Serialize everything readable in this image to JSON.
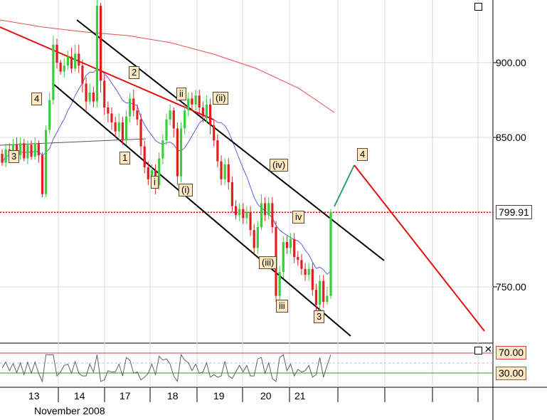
{
  "chart_data": {
    "type": "candlestick",
    "price_axis": {
      "ylim": [
        715,
        975
      ],
      "ticks": [
        "900.00",
        "850.00",
        "750.00"
      ]
    },
    "current_price": {
      "label": "799.91",
      "value": 799.91
    },
    "x_axis": {
      "tick_labels": [
        "13",
        "14",
        "17",
        "18",
        "19",
        "20",
        "21"
      ],
      "month_label": "November 2008"
    },
    "candles": [
      [
        839,
        833,
        842,
        831
      ],
      [
        833,
        842,
        846,
        830
      ],
      [
        842,
        838,
        846,
        835
      ],
      [
        838,
        845,
        849,
        834
      ],
      [
        845,
        838,
        850,
        836
      ],
      [
        838,
        846,
        850,
        835
      ],
      [
        846,
        836,
        849,
        834
      ],
      [
        836,
        845,
        848,
        832
      ],
      [
        845,
        837,
        848,
        835
      ],
      [
        837,
        846,
        850,
        835
      ],
      [
        846,
        838,
        848,
        833
      ],
      [
        838,
        812,
        840,
        810
      ],
      [
        812,
        855,
        858,
        810
      ],
      [
        855,
        875,
        880,
        852
      ],
      [
        875,
        912,
        918,
        872
      ],
      [
        912,
        900,
        916,
        896
      ],
      [
        900,
        894,
        902,
        892
      ],
      [
        894,
        898,
        903,
        890
      ],
      [
        898,
        904,
        908,
        895
      ],
      [
        904,
        896,
        910,
        893
      ],
      [
        896,
        906,
        912,
        894
      ],
      [
        906,
        898,
        912,
        893
      ],
      [
        898,
        886,
        902,
        880
      ],
      [
        886,
        874,
        890,
        868
      ],
      [
        874,
        880,
        886,
        872
      ],
      [
        880,
        874,
        884,
        870
      ],
      [
        874,
        938,
        942,
        870
      ],
      [
        938,
        888,
        940,
        880
      ],
      [
        888,
        870,
        892,
        865
      ],
      [
        870,
        866,
        874,
        860
      ],
      [
        866,
        860,
        870,
        855
      ],
      [
        860,
        854,
        864,
        850
      ],
      [
        854,
        860,
        866,
        850
      ],
      [
        860,
        848,
        864,
        845
      ],
      [
        848,
        864,
        868,
        845
      ],
      [
        864,
        876,
        880,
        860
      ],
      [
        876,
        868,
        882,
        864
      ],
      [
        868,
        862,
        872,
        858
      ],
      [
        862,
        844,
        866,
        838
      ],
      [
        844,
        830,
        848,
        826
      ],
      [
        830,
        822,
        834,
        818
      ],
      [
        822,
        828,
        832,
        818
      ],
      [
        828,
        818,
        832,
        812
      ],
      [
        818,
        836,
        840,
        815
      ],
      [
        836,
        848,
        852,
        832
      ],
      [
        848,
        862,
        866,
        845
      ],
      [
        862,
        868,
        872,
        858
      ],
      [
        868,
        856,
        870,
        850
      ],
      [
        856,
        824,
        860,
        818
      ],
      [
        824,
        856,
        860,
        820
      ],
      [
        856,
        868,
        872,
        852
      ],
      [
        868,
        876,
        880,
        864
      ],
      [
        876,
        872,
        880,
        868
      ],
      [
        872,
        878,
        882,
        868
      ],
      [
        878,
        870,
        882,
        866
      ],
      [
        870,
        864,
        874,
        860
      ],
      [
        864,
        872,
        878,
        860
      ],
      [
        872,
        858,
        876,
        852
      ],
      [
        858,
        848,
        862,
        844
      ],
      [
        848,
        834,
        852,
        830
      ],
      [
        834,
        822,
        838,
        818
      ],
      [
        822,
        832,
        836,
        818
      ],
      [
        832,
        820,
        836,
        815
      ],
      [
        820,
        804,
        824,
        800
      ],
      [
        804,
        798,
        808,
        795
      ],
      [
        798,
        802,
        806,
        794
      ],
      [
        802,
        796,
        806,
        792
      ],
      [
        796,
        800,
        804,
        792
      ],
      [
        800,
        788,
        804,
        784
      ],
      [
        788,
        776,
        792,
        772
      ],
      [
        776,
        790,
        794,
        772
      ],
      [
        790,
        806,
        812,
        788
      ],
      [
        806,
        798,
        810,
        794
      ],
      [
        798,
        806,
        810,
        795
      ],
      [
        806,
        790,
        810,
        786
      ],
      [
        790,
        744,
        794,
        740
      ],
      [
        744,
        760,
        764,
        740
      ],
      [
        760,
        780,
        784,
        756
      ],
      [
        780,
        776,
        784,
        772
      ],
      [
        776,
        782,
        786,
        772
      ],
      [
        782,
        770,
        786,
        766
      ],
      [
        770,
        768,
        774,
        764
      ],
      [
        768,
        762,
        772,
        758
      ],
      [
        762,
        758,
        766,
        754
      ],
      [
        758,
        762,
        766,
        754
      ],
      [
        762,
        748,
        766,
        744
      ],
      [
        748,
        738,
        752,
        732
      ],
      [
        738,
        754,
        758,
        734
      ],
      [
        754,
        740,
        758,
        736
      ],
      [
        740,
        744,
        750,
        738
      ],
      [
        744,
        800,
        802,
        742
      ]
    ],
    "wave_labels": [
      {
        "text": "3"
      },
      {
        "text": "4"
      },
      {
        "text": "2"
      },
      {
        "text": "1"
      },
      {
        "text": "ii"
      },
      {
        "text": "(ii)"
      },
      {
        "text": "i"
      },
      {
        "text": "(i)"
      },
      {
        "text": "(iv)"
      },
      {
        "text": "iv"
      },
      {
        "text": "(iii)"
      },
      {
        "text": "iii"
      },
      {
        "text": "3"
      },
      {
        "text": "4"
      }
    ],
    "oscillator": {
      "upper_label": "70.00",
      "lower_label": "30.00",
      "upper": 70,
      "lower": 30
    }
  },
  "colors": {
    "up_candle": "#3ccc3c",
    "down_candle": "#e02020",
    "projection_up": "#2aa070",
    "projection_down": "#e01010",
    "channel": "#000000",
    "ma_fast": "#6060e0",
    "ma_slow": "#e05050",
    "price_line": "#e00000"
  }
}
